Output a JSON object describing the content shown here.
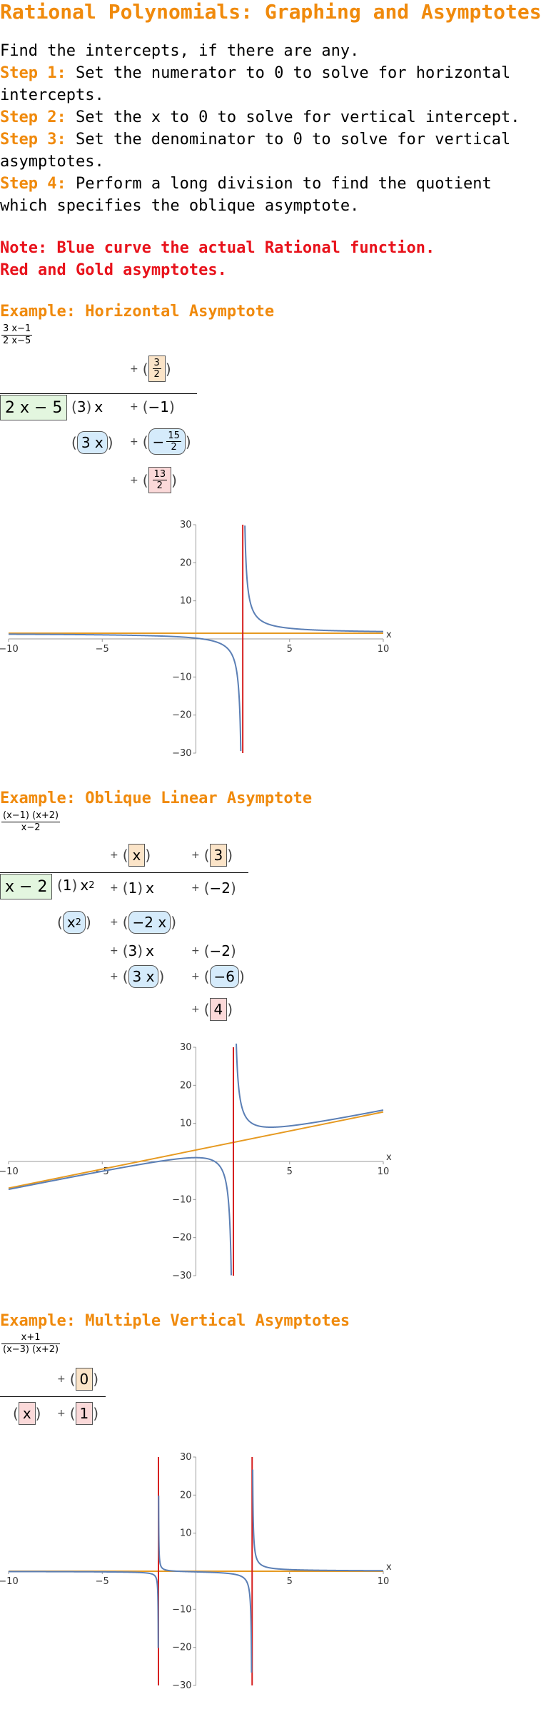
{
  "title": "Rational Polynomials: Graphing and Asymptotes",
  "intro": {
    "line0": "Find the intercepts, if there are any.",
    "steps": [
      {
        "label": "Step 1:",
        "text": " Set the numerator to 0 to solve for horizontal intercepts."
      },
      {
        "label": "Step 2:",
        "text": " Set the x to 0 to solve for vertical intercept."
      },
      {
        "label": "Step 3:",
        "text": " Set the denominator to 0 to solve for vertical asymptotes."
      },
      {
        "label": "Step 4:",
        "text": " Perform a long division to find the quotient which specifies the oblique asymptote."
      }
    ]
  },
  "note": {
    "line1": "Note: Blue curve the actual Rational function.",
    "line2": "Red and Gold asymptotes."
  },
  "colors": {
    "title": "#f08a0c",
    "note": "#e8121b",
    "curve": "#5b7fb5",
    "vertical": "#d62020",
    "oblique": "#e69a22"
  },
  "examples": [
    {
      "title": "Example: Horizontal Asymptote",
      "fraction": {
        "num": "3 x−1",
        "den": "2 x−5"
      },
      "division": {
        "quotient": [
          {
            "plus": "+",
            "num": "3",
            "den": "2"
          }
        ],
        "divisor": "2 x − 5",
        "dividend": [
          {
            "coef": "3",
            "var": "x"
          },
          {
            "plus": "+",
            "val": "−1"
          }
        ],
        "sub1": [
          {
            "val": "3 x"
          },
          {
            "plus": "+",
            "sign": "−",
            "num": "15",
            "den": "2"
          }
        ],
        "remainder": {
          "plus": "+",
          "num": "13",
          "den": "2"
        }
      }
    },
    {
      "title": "Example: Oblique Linear Asymptote",
      "fraction": {
        "num": "(x−1) (x+2)",
        "den": "x−2"
      },
      "division": {
        "quotient": [
          {
            "plus": "+",
            "val": "x"
          },
          {
            "plus": "+",
            "val": "3"
          }
        ],
        "divisor": "x − 2",
        "dividend": [
          {
            "coef": "1",
            "var": "x",
            "exp": "2"
          },
          {
            "plus": "+",
            "coef": "1",
            "var": "x"
          },
          {
            "plus": "+",
            "val": "−2"
          }
        ],
        "sub1": [
          {
            "val": "x",
            "exp": "2"
          },
          {
            "plus": "+",
            "val": "−2 x"
          }
        ],
        "line3": [
          {
            "plus": "+",
            "coef": "3",
            "var": "x"
          },
          {
            "plus": "+",
            "val": "−2"
          }
        ],
        "sub2": [
          {
            "plus": "+",
            "val": "3 x"
          },
          {
            "plus": "+",
            "val": "−6"
          }
        ],
        "remainder": {
          "plus": "+",
          "val": "4"
        }
      }
    },
    {
      "title": "Example: Multiple Vertical Asymptotes",
      "fraction": {
        "num": "x+1",
        "den": "(x−3) (x+2)"
      },
      "division": {
        "quotient": [
          {
            "plus": "+",
            "val": "0"
          }
        ],
        "remainder_row": [
          {
            "val": "x"
          },
          {
            "plus": "+",
            "val": "1"
          }
        ]
      }
    }
  ],
  "chart_data": [
    {
      "type": "line",
      "function": "(3x−1)/(2x−5)",
      "xlim": [
        -10,
        10
      ],
      "ylim": [
        -30,
        30
      ],
      "x_ticks": [
        "−10",
        "−5",
        "5",
        "10"
      ],
      "y_ticks": [
        "30",
        "20",
        "10",
        "−10",
        "−20",
        "−30"
      ],
      "xlabel": "x",
      "vertical_asymptotes": [
        2.5
      ],
      "horizontal_asymptote": 1.5
    },
    {
      "type": "line",
      "function": "(x−1)(x+2)/(x−2)",
      "xlim": [
        -10,
        10
      ],
      "ylim": [
        -30,
        30
      ],
      "x_ticks": [
        "−10",
        "−5",
        "5",
        "10"
      ],
      "y_ticks": [
        "30",
        "20",
        "10",
        "−10",
        "−20",
        "−30"
      ],
      "xlabel": "x",
      "vertical_asymptotes": [
        2
      ],
      "oblique_asymptote": {
        "slope": 1,
        "intercept": 3
      }
    },
    {
      "type": "line",
      "function": "(x+1)/((x−3)(x+2))",
      "xlim": [
        -10,
        10
      ],
      "ylim": [
        -30,
        30
      ],
      "x_ticks": [
        "−10",
        "−5",
        "5",
        "10"
      ],
      "y_ticks": [
        "30",
        "20",
        "10",
        "−10",
        "−20",
        "−30"
      ],
      "xlabel": "x",
      "vertical_asymptotes": [
        -2,
        3
      ],
      "horizontal_asymptote": 0
    }
  ]
}
